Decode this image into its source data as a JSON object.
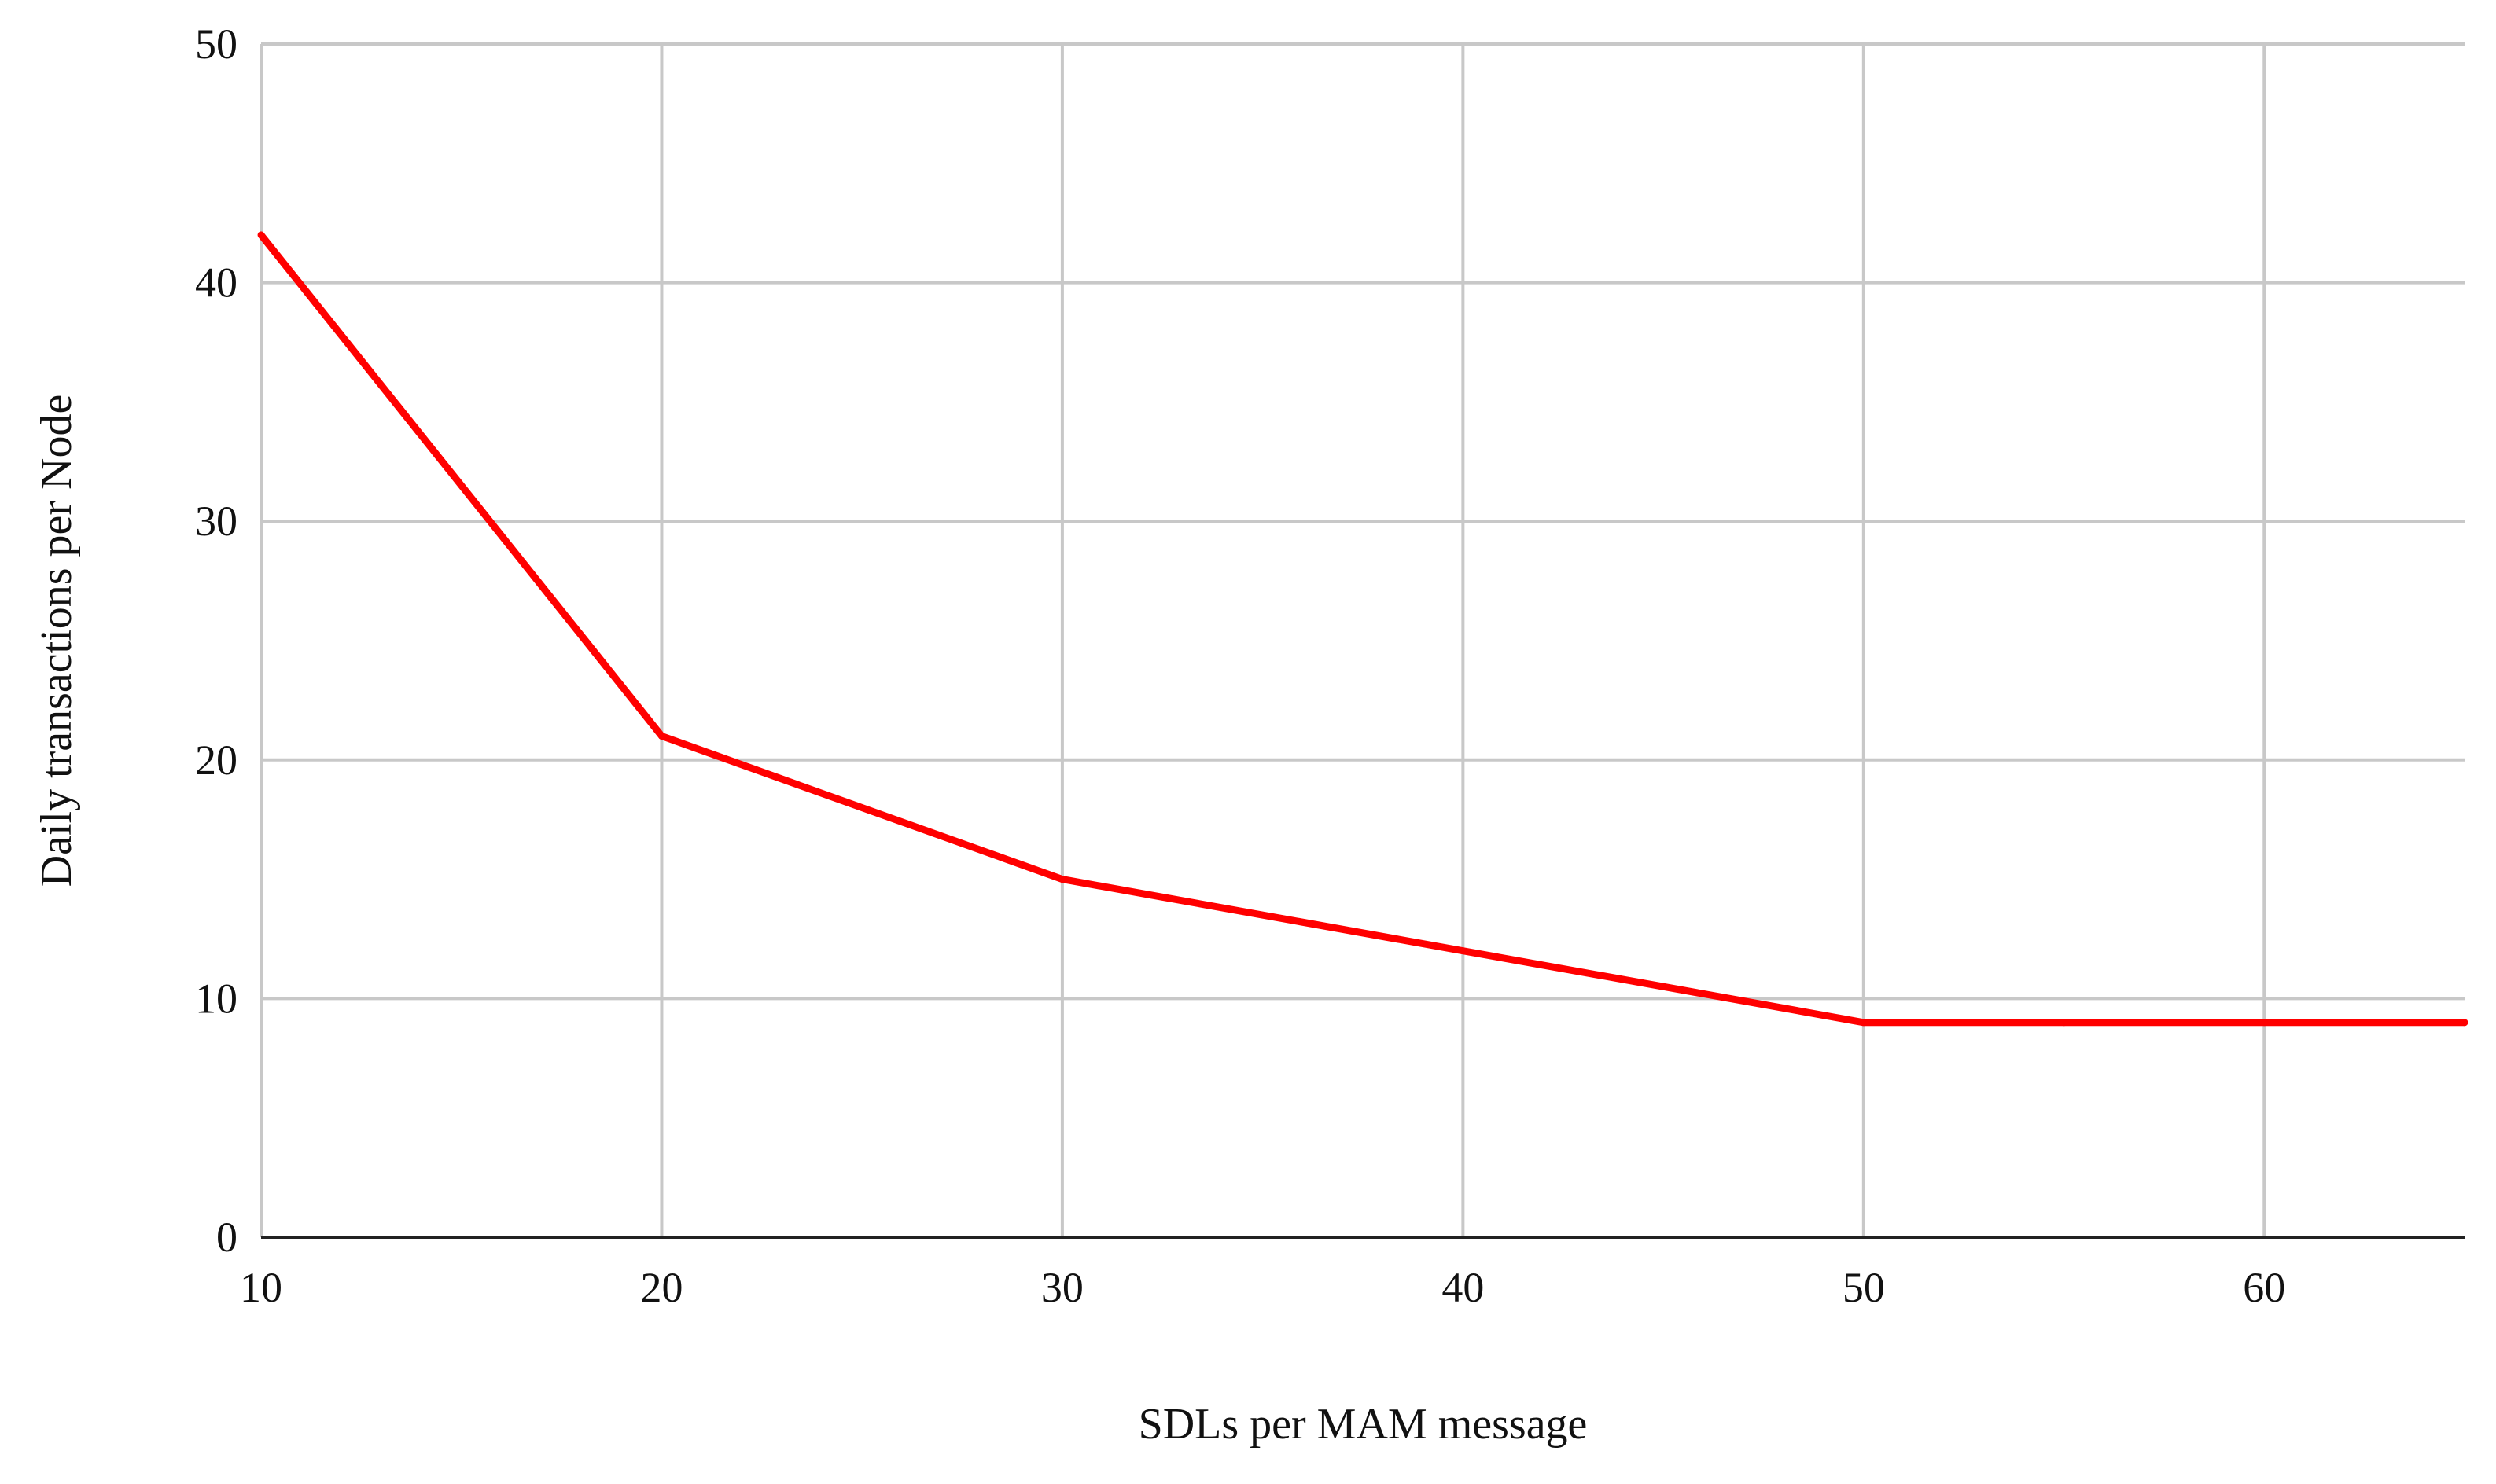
{
  "chart_data": {
    "type": "line",
    "title": "",
    "xlabel": "SDLs per MAM message",
    "ylabel": "Daily transactions per Node",
    "xlim": [
      10,
      65
    ],
    "ylim": [
      0,
      50
    ],
    "x_ticks": [
      10,
      20,
      30,
      40,
      50,
      60
    ],
    "y_ticks": [
      0,
      10,
      20,
      30,
      40,
      50
    ],
    "grid": true,
    "legend": "none",
    "series": [
      {
        "color": "#ff0000",
        "x": [
          10,
          20,
          30,
          40,
          50,
          55,
          60,
          65
        ],
        "y": [
          42,
          21,
          15,
          12,
          9,
          9,
          9,
          9
        ]
      }
    ]
  }
}
